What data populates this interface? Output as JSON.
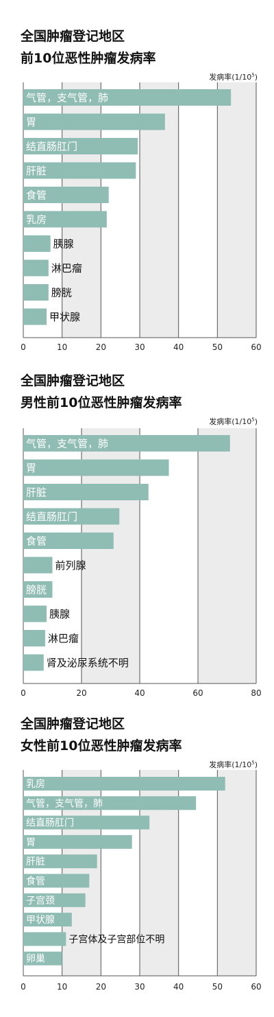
{
  "chart_data": [
    {
      "type": "bar",
      "orientation": "horizontal",
      "title": "全国肿瘤登记地区",
      "subtitle": "前10位恶性肿瘤发病率",
      "unit_label": "发病率",
      "unit_value": "(1/10",
      "unit_exp": "5",
      "unit_close": ")",
      "categories": [
        "气管，支气管，肺",
        "胃",
        "结直肠肛门",
        "肝脏",
        "食管",
        "乳房",
        "胰腺",
        "淋巴瘤",
        "膀胱",
        "甲状腺"
      ],
      "values": [
        53.5,
        36.5,
        29.5,
        29,
        22,
        21.5,
        7,
        6.5,
        6.5,
        6
      ],
      "xlim": [
        0,
        60
      ],
      "xticks": [
        "0",
        "10",
        "20",
        "30",
        "40",
        "50",
        "60"
      ],
      "grid": "alternating bands",
      "colors": {
        "bar": "#8fbcb3",
        "band": "#ececec"
      }
    },
    {
      "type": "bar",
      "orientation": "horizontal",
      "title": "全国肿瘤登记地区",
      "subtitle": "男性前10位恶性肿瘤发病率",
      "unit_label": "发病率",
      "unit_value": "(1/10",
      "unit_exp": "5",
      "unit_close": ")",
      "categories": [
        "气管，支气管，肺",
        "胃",
        "肝脏",
        "结直肠肛门",
        "食管",
        "前列腺",
        "膀胱",
        "胰腺",
        "淋巴瘤",
        "肾及泌尿系统不明"
      ],
      "values": [
        71,
        50,
        43,
        33,
        31,
        10,
        10,
        8,
        7.5,
        7
      ],
      "xlim": [
        0,
        80
      ],
      "xticks": [
        "0",
        "20",
        "40",
        "60",
        "80"
      ],
      "grid": "alternating bands",
      "colors": {
        "bar": "#8fbcb3",
        "band": "#ececec"
      }
    },
    {
      "type": "bar",
      "orientation": "horizontal",
      "title": "全国肿瘤登记地区",
      "subtitle": "女性前10位恶性肿瘤发病率",
      "unit_label": "发病率",
      "unit_value": "(1/10",
      "unit_exp": "5",
      "unit_close": ")",
      "categories": [
        "乳房",
        "气管，支气管，肺",
        "结直肠肛门",
        "胃",
        "肝脏",
        "食管",
        "子宫颈",
        "甲状腺",
        "子宫体及子宫部位不明",
        "卵巢"
      ],
      "values": [
        52,
        44.5,
        32.5,
        28,
        19,
        17,
        16,
        12.5,
        11,
        10
      ],
      "xlim": [
        0,
        60
      ],
      "xticks": [
        "0",
        "10",
        "20",
        "30",
        "40",
        "50",
        "60"
      ],
      "grid": "alternating bands",
      "colors": {
        "bar": "#8fbcb3",
        "band": "#ececec"
      }
    }
  ]
}
